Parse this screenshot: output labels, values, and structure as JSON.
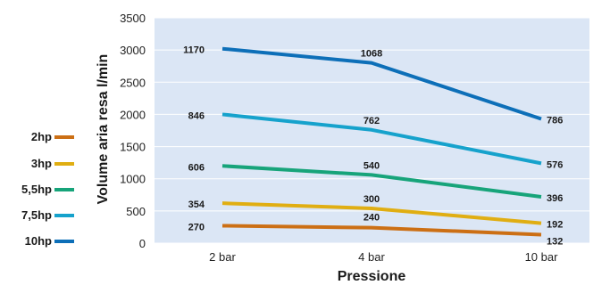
{
  "chart_data": {
    "type": "line",
    "title": "",
    "xlabel": "Pressione",
    "ylabel": "Volume aria resa l/min",
    "categories": [
      "2 bar",
      "4 bar",
      "10 bar"
    ],
    "ylim": [
      0,
      3500
    ],
    "yticks": [
      0,
      500,
      1000,
      1500,
      2000,
      2500,
      3000,
      3500
    ],
    "grid": true,
    "legend_position": "left",
    "series": [
      {
        "name": "2hp",
        "color": "#cc6f14",
        "values": [
          270,
          240,
          132
        ],
        "labels": [
          "270",
          "240",
          "132"
        ]
      },
      {
        "name": "3hp",
        "color": "#e0ae12",
        "values": [
          620,
          540,
          310
        ],
        "labels": [
          "354",
          "300",
          "192"
        ]
      },
      {
        "name": "5,5hp",
        "color": "#17a47a",
        "values": [
          1200,
          1060,
          720
        ],
        "labels": [
          "606",
          "540",
          "396"
        ]
      },
      {
        "name": "7,5hp",
        "color": "#16a2cc",
        "values": [
          2000,
          1760,
          1240
        ],
        "labels": [
          "846",
          "762",
          "576"
        ]
      },
      {
        "name": "10hp",
        "color": "#0d6fb8",
        "values": [
          3020,
          2800,
          1930
        ],
        "labels": [
          "1170",
          "1068",
          "786"
        ]
      }
    ]
  }
}
